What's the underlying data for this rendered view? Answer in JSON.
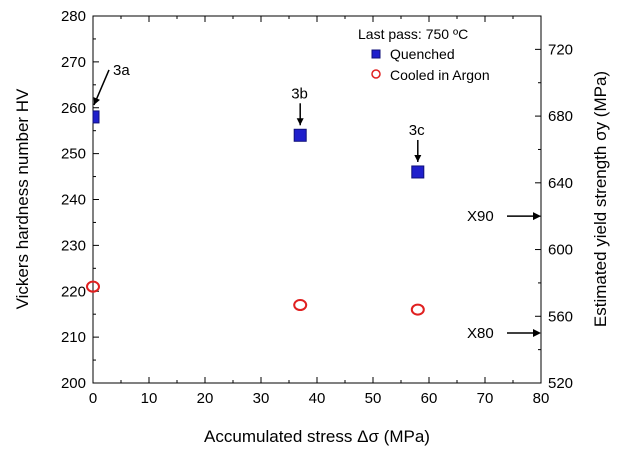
{
  "chart_data": {
    "type": "scatter",
    "title": "",
    "xlabel": "Accumulated stress Δσ (MPa)",
    "ylabel": "Vickers hardness number HV",
    "y2label": "Estimated yield strength σy (MPa)",
    "xlim": [
      0,
      80
    ],
    "ylim": [
      200,
      280
    ],
    "y2lim": [
      520,
      740
    ],
    "x_ticks": [
      "0",
      "10",
      "20",
      "30",
      "40",
      "50",
      "60",
      "70",
      "80"
    ],
    "y_ticks": [
      "200",
      "210",
      "220",
      "230",
      "240",
      "250",
      "260",
      "270",
      "280"
    ],
    "y2_ticks": [
      "520",
      "560",
      "600",
      "640",
      "680",
      "720"
    ],
    "grid": false,
    "legend_title": "Last pass: 750 ºC",
    "legend_position": "top-right",
    "series": [
      {
        "name": "Quenched",
        "marker": "filled-square",
        "color": "#1f1fcc",
        "points": [
          {
            "x": 0,
            "y": 258
          },
          {
            "x": 37,
            "y": 254
          },
          {
            "x": 58,
            "y": 246
          }
        ]
      },
      {
        "name": "Cooled in Argon",
        "marker": "open-circle",
        "color": "#e02020",
        "points": [
          {
            "x": 0,
            "y": 221
          },
          {
            "x": 37,
            "y": 217
          },
          {
            "x": 58,
            "y": 216
          }
        ]
      }
    ],
    "point_annotations": [
      {
        "label": "3a",
        "x": 0,
        "y": 258
      },
      {
        "label": "3b",
        "x": 37,
        "y": 254
      },
      {
        "label": "3c",
        "x": 58,
        "y": 246
      }
    ],
    "reference_markers": [
      {
        "label": "X90",
        "y2": 620
      },
      {
        "label": "X80",
        "y2": 550
      }
    ]
  }
}
